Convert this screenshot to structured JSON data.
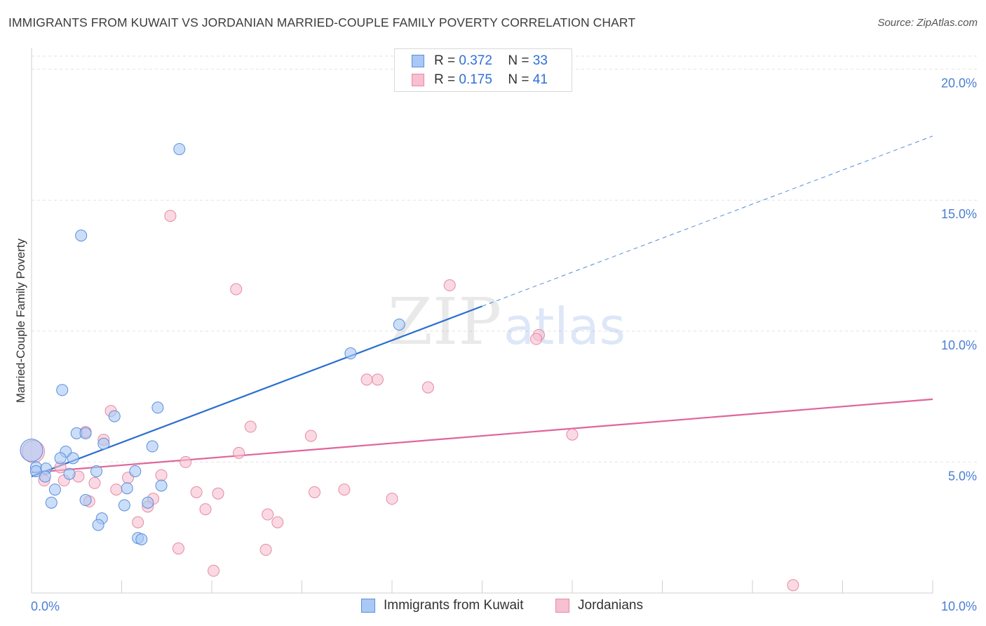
{
  "header": {
    "title": "IMMIGRANTS FROM KUWAIT VS JORDANIAN MARRIED-COUPLE FAMILY POVERTY CORRELATION CHART",
    "source": "Source: ZipAtlas.com"
  },
  "watermark": {
    "zip": "ZIP",
    "atlas": "atlas"
  },
  "legend_top": [
    {
      "r_label": "R =",
      "r_value": "0.372",
      "n_label": "N =",
      "n_value": "33"
    },
    {
      "r_label": "R =",
      "r_value": "0.175",
      "n_label": "N =",
      "n_value": "41"
    }
  ],
  "legend_bottom": [
    {
      "label": "Immigrants from Kuwait"
    },
    {
      "label": "Jordanians"
    }
  ],
  "colors": {
    "blue_fill": "#a9c8f5",
    "blue_stroke": "#5b8fd9",
    "blue_line": "#2a6fd0",
    "pink_fill": "#f7bfd0",
    "pink_stroke": "#e68aa6",
    "pink_line": "#e0659a",
    "tick_text": "#4a7fd4"
  },
  "chart_data": {
    "type": "scatter",
    "title": "IMMIGRANTS FROM KUWAIT VS JORDANIAN MARRIED-COUPLE FAMILY POVERTY CORRELATION CHART",
    "xlabel": "",
    "ylabel": "Married-Couple Family Poverty",
    "xlim": [
      0,
      10
    ],
    "ylim": [
      0,
      20.5
    ],
    "x_tick_labels": [
      {
        "value": 0,
        "label": "0.0%"
      },
      {
        "value": 10,
        "label": "10.0%"
      }
    ],
    "y_tick_labels": [
      {
        "value": 5,
        "label": "5.0%"
      },
      {
        "value": 10,
        "label": "10.0%"
      },
      {
        "value": 15,
        "label": "15.0%"
      },
      {
        "value": 20,
        "label": "20.0%"
      }
    ],
    "grid": "horizontal dashed",
    "legend_position": "top-center",
    "series": [
      {
        "name": "Immigrants from Kuwait",
        "color": "blue",
        "points": [
          [
            1.64,
            16.95
          ],
          [
            0.55,
            13.65
          ],
          [
            0.34,
            7.75
          ],
          [
            1.4,
            7.08
          ],
          [
            0.92,
            6.75
          ],
          [
            0.5,
            6.1
          ],
          [
            0.6,
            6.1
          ],
          [
            0.8,
            5.7
          ],
          [
            1.34,
            5.6
          ],
          [
            0.38,
            5.4
          ],
          [
            0.46,
            5.15
          ],
          [
            0.32,
            5.15
          ],
          [
            0.05,
            4.8
          ],
          [
            0.16,
            4.75
          ],
          [
            0.72,
            4.65
          ],
          [
            1.15,
            4.65
          ],
          [
            0.42,
            4.55
          ],
          [
            0.15,
            4.45
          ],
          [
            1.44,
            4.1
          ],
          [
            1.06,
            4.0
          ],
          [
            0.26,
            3.95
          ],
          [
            0.6,
            3.55
          ],
          [
            0.22,
            3.45
          ],
          [
            1.03,
            3.35
          ],
          [
            1.29,
            3.45
          ],
          [
            0.78,
            2.85
          ],
          [
            0.74,
            2.6
          ],
          [
            1.18,
            2.1
          ],
          [
            1.22,
            2.05
          ],
          [
            3.54,
            9.15
          ],
          [
            4.08,
            10.25
          ],
          [
            0.0,
            5.45
          ],
          [
            0.05,
            4.65
          ]
        ],
        "trend": {
          "x": [
            0.0,
            5.0
          ],
          "y": [
            4.45,
            10.95
          ]
        },
        "trend_extension": {
          "x": [
            5.0,
            10.0
          ],
          "y": [
            10.95,
            17.45
          ]
        }
      },
      {
        "name": "Jordanians",
        "color": "pink",
        "points": [
          [
            1.54,
            14.4
          ],
          [
            2.27,
            11.6
          ],
          [
            4.64,
            11.75
          ],
          [
            5.63,
            9.85
          ],
          [
            5.6,
            9.7
          ],
          [
            3.72,
            8.15
          ],
          [
            3.84,
            8.15
          ],
          [
            4.4,
            7.85
          ],
          [
            0.88,
            6.95
          ],
          [
            2.43,
            6.35
          ],
          [
            3.1,
            6.0
          ],
          [
            6.0,
            6.05
          ],
          [
            0.6,
            6.15
          ],
          [
            0.8,
            5.85
          ],
          [
            2.3,
            5.35
          ],
          [
            1.71,
            5.0
          ],
          [
            0.32,
            4.8
          ],
          [
            1.44,
            4.5
          ],
          [
            1.07,
            4.4
          ],
          [
            0.52,
            4.45
          ],
          [
            0.36,
            4.3
          ],
          [
            0.7,
            4.2
          ],
          [
            0.14,
            4.3
          ],
          [
            0.94,
            3.95
          ],
          [
            1.83,
            3.85
          ],
          [
            2.07,
            3.8
          ],
          [
            3.14,
            3.85
          ],
          [
            3.47,
            3.95
          ],
          [
            1.35,
            3.6
          ],
          [
            0.64,
            3.5
          ],
          [
            1.29,
            3.3
          ],
          [
            1.93,
            3.2
          ],
          [
            4.0,
            3.6
          ],
          [
            2.62,
            3.0
          ],
          [
            2.73,
            2.7
          ],
          [
            1.18,
            2.7
          ],
          [
            1.63,
            1.7
          ],
          [
            2.6,
            1.65
          ],
          [
            2.02,
            0.85
          ],
          [
            8.45,
            0.3
          ],
          [
            0.02,
            5.4
          ]
        ],
        "trend": {
          "x": [
            0.0,
            10.0
          ],
          "y": [
            4.6,
            7.4
          ]
        }
      }
    ]
  }
}
